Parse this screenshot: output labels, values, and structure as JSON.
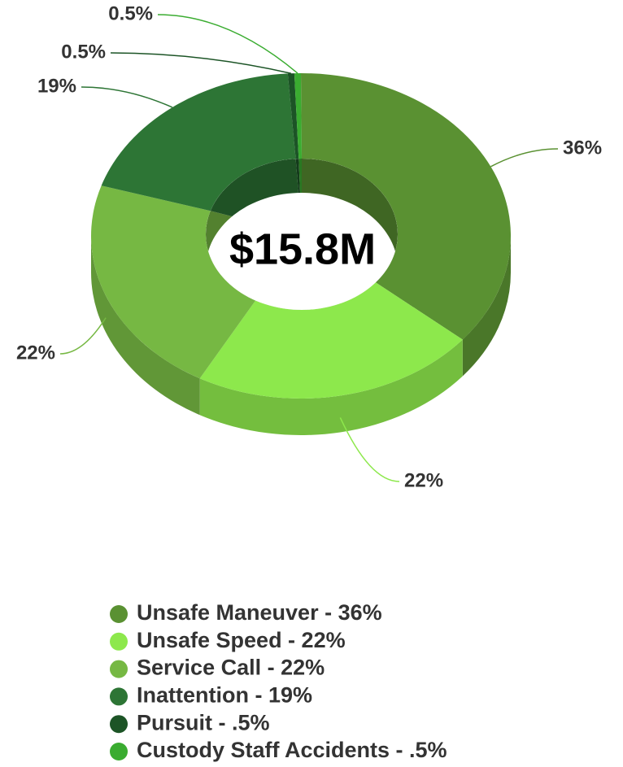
{
  "chart_data": {
    "type": "donut3d",
    "center_label": "$15.8M",
    "categories": [
      "Unsafe Maneuver - 36%",
      "Unsafe Speed - 22%",
      "Service Call - 22%",
      "Inattention - 19%",
      "Pursuit - .5%",
      "Custody Staff Accidents - .5%"
    ],
    "values": [
      36,
      22,
      22,
      19,
      0.5,
      0.5
    ],
    "value_labels": [
      "36%",
      "22%",
      "22%",
      "19%",
      "0.5%",
      "0.5%"
    ],
    "colors": [
      "#5a9132",
      "#8de84c",
      "#76b843",
      "#2d7535",
      "#1c5426",
      "#3aac30"
    ],
    "legend": "bottom"
  }
}
